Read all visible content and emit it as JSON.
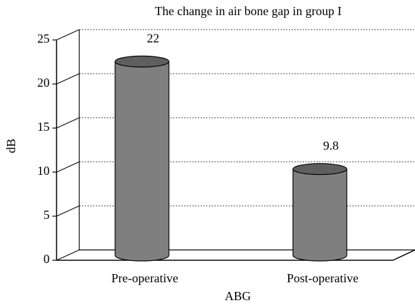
{
  "chart_data": {
    "type": "bar",
    "title": "The change in air bone gap in group I",
    "categories": [
      "Pre-operative",
      "Post-operative"
    ],
    "values": [
      22,
      9.8
    ],
    "color": "#7f7f7f",
    "xlabel": "ABG",
    "ylabel": "dB",
    "ylim": [
      0,
      25
    ],
    "yticks": [
      0,
      5,
      10,
      15,
      20,
      25
    ],
    "grid": true
  }
}
